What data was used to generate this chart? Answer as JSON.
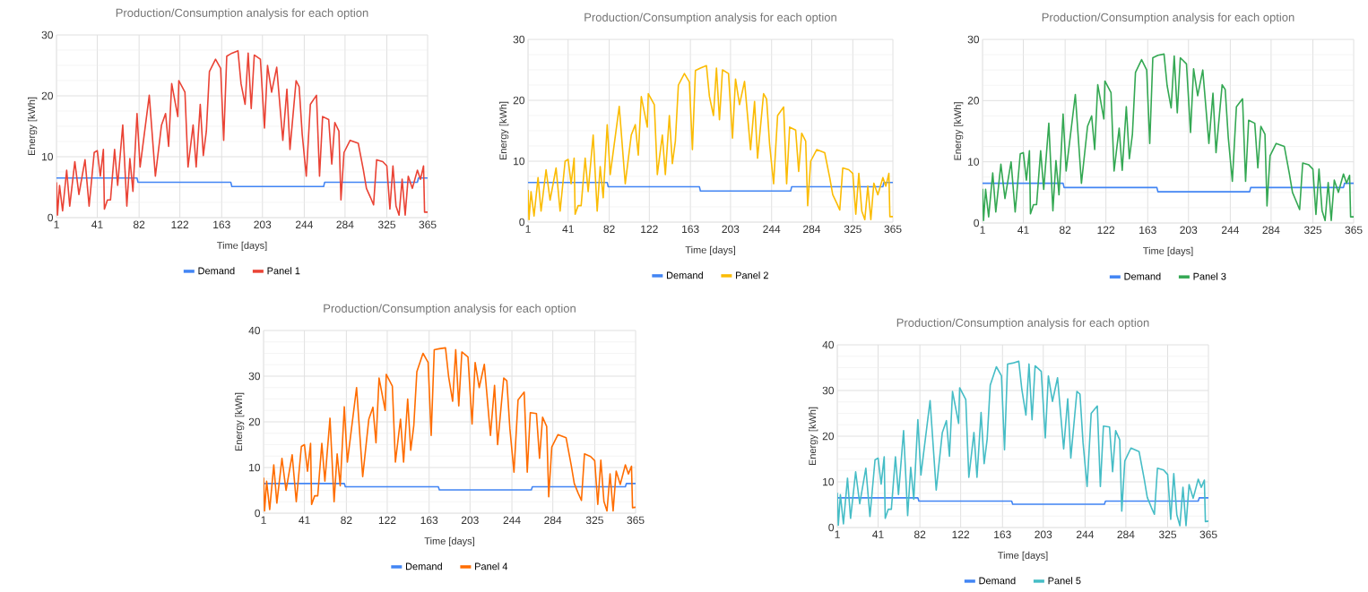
{
  "chart_data": [
    {
      "type": "line",
      "title": "Production/Consumption analysis for each option",
      "xlabel": "Time [days]",
      "ylabel": "Energy [kWh]",
      "xlim": [
        1,
        365
      ],
      "ylim": [
        0,
        30
      ],
      "xticks": [
        1,
        41,
        82,
        122,
        163,
        203,
        244,
        284,
        325,
        365
      ],
      "yticks": [
        0,
        10,
        20,
        30
      ],
      "grid": true,
      "legend": "bottom",
      "series": [
        {
          "name": "Demand",
          "color": "#4285f4",
          "x": [
            1,
            80,
            81,
            172,
            173,
            263,
            264,
            355,
            356,
            365
          ],
          "values": [
            6.5,
            6.5,
            5.8,
            5.8,
            5.1,
            5.1,
            5.8,
            5.8,
            6.5,
            6.5
          ]
        },
        {
          "name": "Panel 1",
          "color": "#ea4335",
          "x": [
            1,
            2,
            4,
            7,
            11,
            14,
            19,
            23,
            29,
            33,
            38,
            41,
            44,
            47,
            48,
            51,
            54,
            58,
            61,
            66,
            70,
            73,
            76,
            80,
            83,
            92,
            98,
            104,
            108,
            111,
            114,
            120,
            121,
            127,
            130,
            135,
            138,
            142,
            145,
            148,
            151,
            157,
            162,
            165,
            168,
            173,
            179,
            182,
            186,
            189,
            192,
            195,
            201,
            205,
            208,
            212,
            217,
            223,
            227,
            230,
            236,
            239,
            242,
            246,
            250,
            256,
            259,
            262,
            268,
            271,
            274,
            278,
            280,
            283,
            289,
            297,
            302,
            305,
            309,
            312,
            315,
            321,
            325,
            328,
            331,
            334,
            337,
            340,
            343,
            346,
            350,
            355,
            358,
            361,
            362,
            365
          ],
          "values": [
            5.8,
            0.4,
            5.3,
            1.1,
            7.8,
            1.9,
            9.2,
            3.8,
            9.5,
            1.9,
            10.7,
            11.0,
            6.8,
            11.2,
            1.4,
            2.9,
            2.9,
            11.2,
            5.3,
            15.2,
            1.9,
            9.7,
            4.3,
            17.1,
            8.3,
            20.1,
            6.8,
            15.2,
            17.1,
            11.7,
            22.0,
            16.6,
            22.5,
            20.6,
            8.3,
            15.2,
            8.3,
            18.6,
            10.2,
            14.2,
            24.0,
            26.0,
            24.5,
            12.7,
            26.5,
            27.0,
            27.4,
            22.0,
            18.6,
            27.0,
            17.9,
            26.7,
            26.0,
            14.7,
            25.0,
            20.6,
            24.7,
            12.7,
            21.1,
            11.2,
            22.5,
            21.5,
            13.7,
            6.8,
            18.6,
            20.1,
            6.8,
            16.6,
            16.1,
            8.8,
            15.6,
            14.2,
            2.9,
            10.7,
            12.7,
            12.2,
            7.8,
            4.8,
            3.3,
            2.1,
            9.5,
            9.2,
            8.5,
            1.4,
            8.5,
            1.9,
            0.4,
            6.3,
            0.4,
            6.8,
            4.8,
            7.8,
            6.3,
            8.5,
            0.9,
            0.9
          ]
        }
      ]
    },
    {
      "type": "line",
      "title": "Production/Consumption analysis for each option",
      "xlabel": "Time [days]",
      "ylabel": "Energy [kWh]",
      "xlim": [
        1,
        365
      ],
      "ylim": [
        0,
        30
      ],
      "xticks": [
        1,
        41,
        82,
        122,
        163,
        203,
        244,
        284,
        325,
        365
      ],
      "yticks": [
        0,
        10,
        20,
        30
      ],
      "grid": true,
      "legend": "bottom",
      "series": [
        {
          "name": "Demand",
          "color": "#4285f4",
          "x": [
            1,
            80,
            81,
            172,
            173,
            263,
            264,
            355,
            356,
            365
          ],
          "values": [
            6.5,
            6.5,
            5.8,
            5.8,
            5.1,
            5.1,
            5.8,
            5.8,
            6.5,
            6.5
          ]
        },
        {
          "name": "Panel 2",
          "color": "#fbbc04",
          "x": [
            1,
            2,
            4,
            7,
            11,
            14,
            19,
            23,
            29,
            33,
            38,
            41,
            44,
            47,
            48,
            51,
            54,
            58,
            61,
            66,
            70,
            73,
            76,
            80,
            83,
            92,
            98,
            104,
            108,
            111,
            114,
            120,
            121,
            127,
            130,
            135,
            138,
            142,
            145,
            148,
            151,
            157,
            162,
            165,
            168,
            173,
            179,
            182,
            186,
            189,
            192,
            195,
            201,
            205,
            208,
            212,
            217,
            223,
            227,
            230,
            236,
            239,
            242,
            246,
            250,
            256,
            259,
            262,
            268,
            271,
            274,
            278,
            280,
            283,
            289,
            297,
            302,
            305,
            309,
            312,
            315,
            321,
            325,
            328,
            331,
            334,
            337,
            340,
            343,
            346,
            350,
            355,
            358,
            361,
            362,
            365
          ],
          "values": [
            5.3,
            0.4,
            5.0,
            1.0,
            7.3,
            1.8,
            8.6,
            3.6,
            8.9,
            1.8,
            10.0,
            10.3,
            6.3,
            10.5,
            1.3,
            2.7,
            2.7,
            10.5,
            5.0,
            14.3,
            1.8,
            9.1,
            4.0,
            16.0,
            7.8,
            19.0,
            6.3,
            14.3,
            16.0,
            11.0,
            20.6,
            15.6,
            21.1,
            19.3,
            7.8,
            14.3,
            7.8,
            17.5,
            9.6,
            13.3,
            22.5,
            24.4,
            23.0,
            11.9,
            24.9,
            25.3,
            25.7,
            20.6,
            17.5,
            25.3,
            16.8,
            25.0,
            24.4,
            13.8,
            23.5,
            19.3,
            23.1,
            11.9,
            19.8,
            10.5,
            21.1,
            20.2,
            12.8,
            6.3,
            17.5,
            18.9,
            6.3,
            15.6,
            15.1,
            8.3,
            14.6,
            13.3,
            2.7,
            10.0,
            11.9,
            11.4,
            7.3,
            4.5,
            3.1,
            2.0,
            8.9,
            8.6,
            8.0,
            1.3,
            8.0,
            1.8,
            0.4,
            5.9,
            0.4,
            6.4,
            4.5,
            7.3,
            5.9,
            8.0,
            0.9,
            0.9
          ]
        }
      ]
    },
    {
      "type": "line",
      "title": "Production/Consumption analysis for each option",
      "xlabel": "Time [days]",
      "ylabel": "Energy [kWh]",
      "xlim": [
        1,
        365
      ],
      "ylim": [
        0,
        30
      ],
      "xticks": [
        1,
        41,
        82,
        122,
        163,
        203,
        244,
        284,
        325,
        365
      ],
      "yticks": [
        0,
        10,
        20,
        30
      ],
      "grid": true,
      "legend": "bottom",
      "series": [
        {
          "name": "Demand",
          "color": "#4285f4",
          "x": [
            1,
            80,
            81,
            172,
            173,
            263,
            264,
            355,
            356,
            365
          ],
          "values": [
            6.5,
            6.5,
            5.8,
            5.8,
            5.1,
            5.1,
            5.8,
            5.8,
            6.5,
            6.5
          ]
        },
        {
          "name": "Panel 3",
          "color": "#34a853",
          "x": [
            1,
            2,
            4,
            7,
            11,
            14,
            19,
            23,
            29,
            33,
            38,
            41,
            44,
            47,
            48,
            51,
            54,
            58,
            61,
            66,
            70,
            73,
            76,
            80,
            83,
            92,
            98,
            104,
            108,
            111,
            114,
            120,
            121,
            127,
            130,
            135,
            138,
            142,
            145,
            148,
            151,
            157,
            162,
            165,
            168,
            173,
            179,
            182,
            186,
            189,
            192,
            195,
            201,
            205,
            208,
            212,
            217,
            223,
            227,
            230,
            236,
            239,
            242,
            246,
            250,
            256,
            259,
            262,
            268,
            271,
            274,
            278,
            280,
            283,
            289,
            297,
            302,
            305,
            309,
            312,
            315,
            321,
            325,
            328,
            331,
            334,
            337,
            340,
            343,
            346,
            350,
            355,
            358,
            361,
            362,
            365
          ],
          "values": [
            5.6,
            0.4,
            5.5,
            1.0,
            8.2,
            1.8,
            9.6,
            4.0,
            10.0,
            1.8,
            11.3,
            11.5,
            7.0,
            11.8,
            1.5,
            3.0,
            3.0,
            11.8,
            5.5,
            16.3,
            2.0,
            10.2,
            4.6,
            17.8,
            8.5,
            21.0,
            6.5,
            15.8,
            17.5,
            12.0,
            22.6,
            17.0,
            23.2,
            21.3,
            8.5,
            15.5,
            8.6,
            19.0,
            10.5,
            14.5,
            24.6,
            26.7,
            25.0,
            13.0,
            27.0,
            27.4,
            27.6,
            22.5,
            18.8,
            27.3,
            18.0,
            27.0,
            26.0,
            14.8,
            25.2,
            20.8,
            25.0,
            13.0,
            21.2,
            11.5,
            22.6,
            21.8,
            14.0,
            6.8,
            19.0,
            20.3,
            6.8,
            16.8,
            16.3,
            9.0,
            15.8,
            14.5,
            2.8,
            11.0,
            13.0,
            12.5,
            8.0,
            5.0,
            3.4,
            2.2,
            9.8,
            9.5,
            8.8,
            1.4,
            8.8,
            2.0,
            0.4,
            6.6,
            0.4,
            7.0,
            5.0,
            8.0,
            6.5,
            7.8,
            1.0,
            1.0
          ]
        }
      ]
    },
    {
      "type": "line",
      "title": "Production/Consumption analysis for each option",
      "xlabel": "Time [days]",
      "ylabel": "Energy [kWh]",
      "xlim": [
        1,
        365
      ],
      "ylim": [
        0,
        40
      ],
      "xticks": [
        1,
        41,
        82,
        122,
        163,
        203,
        244,
        284,
        325,
        365
      ],
      "yticks": [
        0,
        10,
        20,
        30,
        40
      ],
      "grid": true,
      "legend": "bottom",
      "series": [
        {
          "name": "Demand",
          "color": "#4285f4",
          "x": [
            1,
            80,
            81,
            172,
            173,
            263,
            264,
            355,
            356,
            365
          ],
          "values": [
            6.5,
            6.5,
            5.8,
            5.8,
            5.1,
            5.1,
            5.8,
            5.8,
            6.5,
            6.5
          ]
        },
        {
          "name": "Panel 4",
          "color": "#ff6d01",
          "x": [
            1,
            2,
            4,
            7,
            11,
            14,
            19,
            23,
            29,
            33,
            38,
            41,
            44,
            47,
            48,
            51,
            54,
            58,
            61,
            66,
            70,
            73,
            76,
            80,
            83,
            92,
            98,
            104,
            108,
            111,
            114,
            120,
            121,
            127,
            130,
            135,
            138,
            142,
            145,
            148,
            151,
            157,
            162,
            165,
            168,
            173,
            179,
            182,
            186,
            189,
            192,
            195,
            201,
            205,
            208,
            212,
            217,
            223,
            227,
            230,
            236,
            239,
            242,
            246,
            250,
            256,
            259,
            262,
            268,
            271,
            274,
            278,
            280,
            283,
            289,
            297,
            302,
            305,
            309,
            312,
            315,
            321,
            325,
            328,
            331,
            334,
            337,
            340,
            343,
            346,
            350,
            355,
            358,
            361,
            362,
            365
          ],
          "values": [
            7.8,
            0.5,
            7.0,
            0.8,
            10.6,
            2.2,
            12.0,
            5.0,
            12.8,
            2.5,
            14.6,
            15.0,
            9.2,
            15.3,
            1.9,
            3.8,
            3.8,
            15.3,
            7.0,
            20.8,
            2.5,
            13.0,
            6.0,
            23.3,
            11.2,
            27.5,
            8.0,
            20.6,
            23.2,
            15.4,
            29.6,
            22.5,
            30.4,
            27.8,
            11.2,
            20.6,
            11.2,
            25.0,
            13.8,
            19.2,
            31.0,
            35.0,
            33.0,
            17.0,
            35.8,
            36.0,
            36.2,
            30.0,
            24.5,
            35.8,
            23.5,
            35.3,
            34.2,
            19.5,
            33.0,
            27.5,
            32.6,
            17.0,
            28.0,
            15.0,
            29.6,
            29.0,
            18.5,
            9.0,
            24.8,
            26.5,
            9.0,
            22.0,
            21.8,
            12.0,
            21.0,
            19.0,
            3.6,
            14.5,
            17.2,
            16.5,
            10.5,
            6.5,
            4.3,
            2.8,
            13.0,
            12.4,
            11.5,
            1.9,
            11.6,
            2.6,
            0.5,
            8.6,
            0.5,
            9.2,
            6.3,
            10.6,
            8.6,
            10.3,
            1.2,
            1.3
          ]
        }
      ]
    },
    {
      "type": "line",
      "title": "Production/Consumption analysis for each option",
      "xlabel": "Time [days]",
      "ylabel": "Energy [kWh]",
      "xlim": [
        1,
        365
      ],
      "ylim": [
        0,
        40
      ],
      "xticks": [
        1,
        41,
        82,
        122,
        163,
        203,
        244,
        284,
        325,
        365
      ],
      "yticks": [
        0,
        10,
        20,
        30,
        40
      ],
      "grid": true,
      "legend": "bottom",
      "series": [
        {
          "name": "Demand",
          "color": "#4285f4",
          "x": [
            1,
            80,
            81,
            172,
            173,
            263,
            264,
            355,
            356,
            365
          ],
          "values": [
            6.5,
            6.5,
            5.8,
            5.8,
            5.1,
            5.1,
            5.8,
            5.8,
            6.5,
            6.5
          ]
        },
        {
          "name": "Panel 5",
          "color": "#46bdc6",
          "x": [
            1,
            2,
            4,
            7,
            11,
            14,
            19,
            23,
            29,
            33,
            38,
            41,
            44,
            47,
            48,
            51,
            54,
            58,
            61,
            66,
            70,
            73,
            76,
            80,
            83,
            92,
            98,
            104,
            108,
            111,
            114,
            120,
            121,
            127,
            130,
            135,
            138,
            142,
            145,
            148,
            151,
            157,
            162,
            165,
            168,
            173,
            179,
            182,
            186,
            189,
            192,
            195,
            201,
            205,
            208,
            212,
            217,
            223,
            227,
            230,
            236,
            239,
            242,
            246,
            250,
            256,
            259,
            262,
            268,
            271,
            274,
            278,
            280,
            283,
            289,
            297,
            302,
            305,
            309,
            312,
            315,
            321,
            325,
            328,
            331,
            334,
            337,
            340,
            343,
            346,
            350,
            355,
            358,
            361,
            362,
            365
          ],
          "values": [
            7.6,
            0.5,
            7.2,
            0.8,
            10.8,
            2.0,
            12.2,
            5.2,
            13.0,
            2.4,
            14.8,
            15.2,
            9.5,
            15.5,
            2.0,
            4.0,
            4.0,
            15.5,
            7.2,
            21.2,
            2.6,
            13.2,
            6.2,
            23.6,
            11.5,
            27.8,
            8.2,
            20.8,
            23.4,
            15.6,
            29.8,
            22.8,
            30.6,
            28.0,
            11.0,
            20.8,
            11.0,
            25.2,
            14.0,
            19.4,
            31.2,
            35.2,
            33.2,
            17.0,
            35.8,
            36.0,
            36.4,
            30.2,
            24.6,
            35.8,
            23.6,
            35.4,
            34.2,
            19.6,
            33.2,
            27.6,
            32.8,
            17.2,
            28.2,
            15.2,
            29.8,
            29.2,
            18.6,
            9.0,
            25.0,
            26.6,
            9.0,
            22.2,
            22.0,
            12.2,
            21.2,
            19.2,
            3.6,
            14.6,
            17.4,
            16.6,
            10.6,
            6.6,
            4.4,
            2.9,
            13.0,
            12.6,
            11.6,
            1.8,
            11.8,
            2.8,
            0.4,
            8.8,
            0.4,
            9.4,
            6.4,
            10.6,
            8.8,
            10.4,
            1.3,
            1.4
          ]
        }
      ]
    }
  ]
}
